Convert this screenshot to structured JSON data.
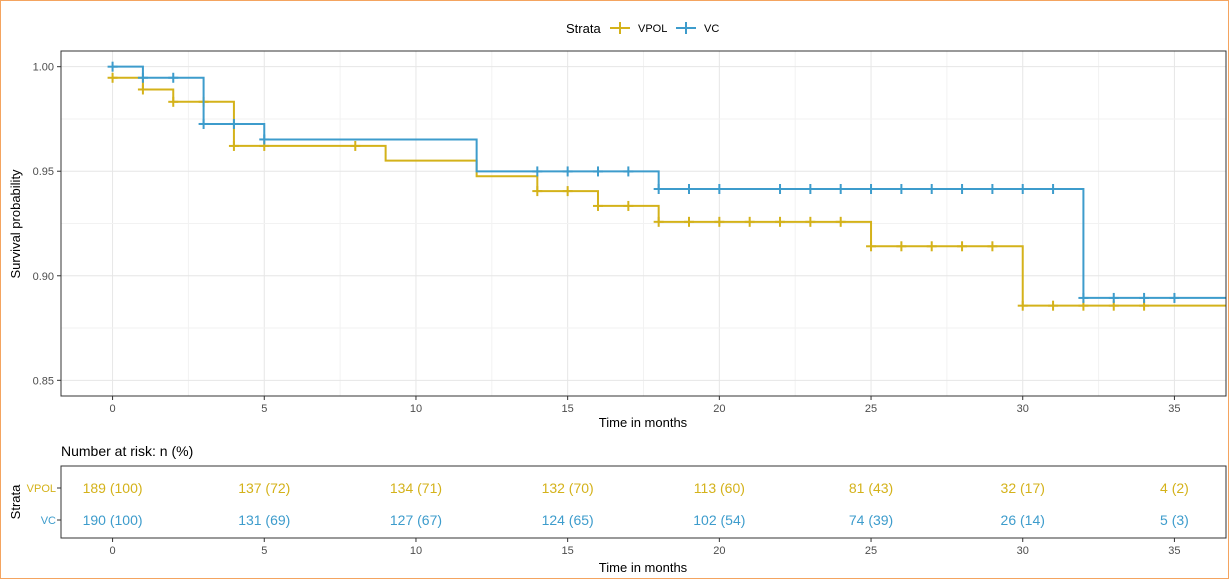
{
  "colors": {
    "VPOL": "#d4b21a",
    "VC": "#3d9ccc",
    "grid_major": "#e6e6e6",
    "grid_minor": "#f2f2f2",
    "axis_text": "#4d4d4d",
    "frame_accent": "#f4a460"
  },
  "legend": {
    "title": "Strata",
    "items": [
      "VPOL",
      "VC"
    ]
  },
  "chart_data": {
    "type": "line",
    "subtype": "kaplan-meier step",
    "xlabel": "Time in months",
    "ylabel": "Survival probability",
    "xlim": [
      -1.7,
      36.7
    ],
    "ylim": [
      0.8425,
      1.0075
    ],
    "x_ticks": [
      0,
      5,
      10,
      15,
      20,
      25,
      30,
      35
    ],
    "y_ticks": [
      0.85,
      0.9,
      0.95,
      1.0
    ],
    "y_tick_labels": [
      "0.85",
      "0.90",
      "0.95",
      "1.00"
    ],
    "grid": true,
    "legend_position": "top",
    "series": [
      {
        "name": "VPOL",
        "steps": [
          [
            0,
            0.9947
          ],
          [
            1,
            0.9891
          ],
          [
            2,
            0.9832
          ],
          [
            4,
            0.9621
          ],
          [
            9,
            0.9551
          ],
          [
            12,
            0.9476
          ],
          [
            14,
            0.9405
          ],
          [
            16,
            0.9334
          ],
          [
            18,
            0.9258
          ],
          [
            25,
            0.9141
          ],
          [
            30,
            0.8857
          ],
          [
            36.7,
            0.8857
          ]
        ],
        "censor_times": [
          0,
          1,
          2,
          3,
          4,
          5,
          8,
          14,
          15,
          16,
          17,
          18,
          19,
          20,
          21,
          22,
          23,
          24,
          25,
          26,
          27,
          28,
          29,
          30,
          31,
          32,
          33,
          34
        ]
      },
      {
        "name": "VC",
        "steps": [
          [
            0,
            1.0
          ],
          [
            1,
            0.9947
          ],
          [
            3,
            0.9726
          ],
          [
            5,
            0.9652
          ],
          [
            12,
            0.9499
          ],
          [
            18,
            0.9415
          ],
          [
            32,
            0.8894
          ],
          [
            36.7,
            0.8894
          ]
        ],
        "censor_times": [
          0,
          1,
          2,
          3,
          4,
          5,
          14,
          15,
          16,
          17,
          18,
          19,
          20,
          22,
          23,
          24,
          25,
          26,
          27,
          28,
          29,
          30,
          31,
          32,
          33,
          34,
          35
        ]
      }
    ]
  },
  "risk_table": {
    "title": "Number at risk: n (%)",
    "ylabel": "Strata",
    "xlabel": "Time in months",
    "times": [
      0,
      5,
      10,
      15,
      20,
      25,
      30,
      35
    ],
    "rows": [
      {
        "name": "VPOL",
        "cells": [
          "189 (100)",
          "137 (72)",
          "134 (71)",
          "132 (70)",
          "113 (60)",
          "81 (43)",
          "32 (17)",
          "4 (2)"
        ]
      },
      {
        "name": "VC",
        "cells": [
          "190 (100)",
          "131 (69)",
          "127 (67)",
          "124 (65)",
          "102 (54)",
          "74 (39)",
          "26 (14)",
          "5 (3)"
        ]
      }
    ]
  }
}
